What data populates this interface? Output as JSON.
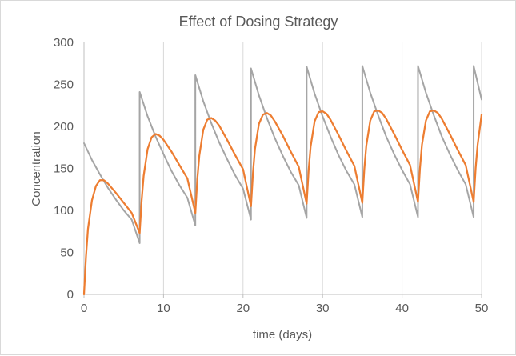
{
  "chart_data": {
    "type": "line",
    "title": "Effect of Dosing Strategy",
    "xlabel": "time (days)",
    "ylabel": "Concentration",
    "xlim": [
      0,
      50
    ],
    "ylim": [
      0,
      300
    ],
    "xticks": [
      "0",
      "10",
      "20",
      "30",
      "40",
      "50"
    ],
    "yticks": [
      "0",
      "50",
      "100",
      "150",
      "200",
      "250",
      "300"
    ],
    "grid": "vertical",
    "legend": "none",
    "series": [
      {
        "color": "#a5a5a5",
        "points": [
          [
            0,
            180
          ],
          [
            1,
            160
          ],
          [
            2,
            143
          ],
          [
            3,
            127
          ],
          [
            4,
            113
          ],
          [
            5,
            100
          ],
          [
            6,
            89
          ],
          [
            7,
            61
          ],
          [
            7,
            241
          ],
          [
            8,
            212
          ],
          [
            9,
            188
          ],
          [
            10,
            167
          ],
          [
            11,
            147
          ],
          [
            12,
            130
          ],
          [
            13,
            115
          ],
          [
            14,
            82
          ],
          [
            14,
            261
          ],
          [
            15,
            230
          ],
          [
            16,
            204
          ],
          [
            17,
            181
          ],
          [
            18,
            161
          ],
          [
            19,
            142
          ],
          [
            20,
            126
          ],
          [
            21,
            89
          ],
          [
            21,
            269
          ],
          [
            22,
            237
          ],
          [
            23,
            210
          ],
          [
            24,
            186
          ],
          [
            25,
            165
          ],
          [
            26,
            146
          ],
          [
            27,
            130
          ],
          [
            28,
            91
          ],
          [
            28,
            271
          ],
          [
            29,
            239
          ],
          [
            30,
            212
          ],
          [
            31,
            188
          ],
          [
            32,
            166
          ],
          [
            33,
            147
          ],
          [
            34,
            131
          ],
          [
            35,
            92
          ],
          [
            35,
            272
          ],
          [
            36,
            240
          ],
          [
            37,
            213
          ],
          [
            38,
            188
          ],
          [
            39,
            167
          ],
          [
            40,
            148
          ],
          [
            41,
            131
          ],
          [
            42,
            92
          ],
          [
            42,
            272
          ],
          [
            43,
            240
          ],
          [
            44,
            213
          ],
          [
            45,
            188
          ],
          [
            46,
            167
          ],
          [
            47,
            148
          ],
          [
            48,
            131
          ],
          [
            49,
            92
          ],
          [
            49,
            272
          ],
          [
            50,
            232
          ]
        ]
      },
      {
        "color": "#ed7d31",
        "points": [
          [
            0,
            0
          ],
          [
            0.25,
            45
          ],
          [
            0.5,
            78
          ],
          [
            1,
            112
          ],
          [
            1.5,
            129
          ],
          [
            2,
            136
          ],
          [
            2.5,
            136
          ],
          [
            3,
            132
          ],
          [
            4,
            121
          ],
          [
            5,
            109
          ],
          [
            6,
            97
          ],
          [
            7,
            73
          ],
          [
            7.25,
            112
          ],
          [
            7.5,
            141
          ],
          [
            8,
            173
          ],
          [
            8.5,
            187
          ],
          [
            9,
            191
          ],
          [
            9.5,
            189
          ],
          [
            10,
            184
          ],
          [
            11,
            170
          ],
          [
            12,
            154
          ],
          [
            13,
            138
          ],
          [
            14,
            97
          ],
          [
            14.25,
            137
          ],
          [
            14.5,
            165
          ],
          [
            15,
            196
          ],
          [
            15.5,
            208
          ],
          [
            16,
            210
          ],
          [
            16.5,
            207
          ],
          [
            17,
            201
          ],
          [
            18,
            184
          ],
          [
            19,
            166
          ],
          [
            20,
            149
          ],
          [
            21,
            105
          ],
          [
            21.25,
            145
          ],
          [
            21.5,
            173
          ],
          [
            22,
            203
          ],
          [
            22.5,
            214
          ],
          [
            23,
            216
          ],
          [
            23.5,
            213
          ],
          [
            24,
            206
          ],
          [
            25,
            189
          ],
          [
            26,
            170
          ],
          [
            27,
            152
          ],
          [
            28,
            108
          ],
          [
            28.25,
            148
          ],
          [
            28.5,
            176
          ],
          [
            29,
            206
          ],
          [
            29.5,
            217
          ],
          [
            30,
            218
          ],
          [
            30.5,
            215
          ],
          [
            31,
            208
          ],
          [
            32,
            190
          ],
          [
            33,
            171
          ],
          [
            34,
            153
          ],
          [
            35,
            109
          ],
          [
            35.25,
            149
          ],
          [
            35.5,
            177
          ],
          [
            36,
            207
          ],
          [
            36.5,
            218
          ],
          [
            37,
            219
          ],
          [
            37.5,
            216
          ],
          [
            38,
            209
          ],
          [
            39,
            191
          ],
          [
            40,
            172
          ],
          [
            41,
            154
          ],
          [
            42,
            110
          ],
          [
            42.25,
            150
          ],
          [
            42.5,
            178
          ],
          [
            43,
            207
          ],
          [
            43.5,
            218
          ],
          [
            44,
            219
          ],
          [
            44.5,
            216
          ],
          [
            45,
            209
          ],
          [
            46,
            191
          ],
          [
            47,
            172
          ],
          [
            48,
            154
          ],
          [
            49,
            110
          ],
          [
            49.25,
            150
          ],
          [
            49.5,
            178
          ],
          [
            50,
            214
          ]
        ]
      }
    ]
  }
}
